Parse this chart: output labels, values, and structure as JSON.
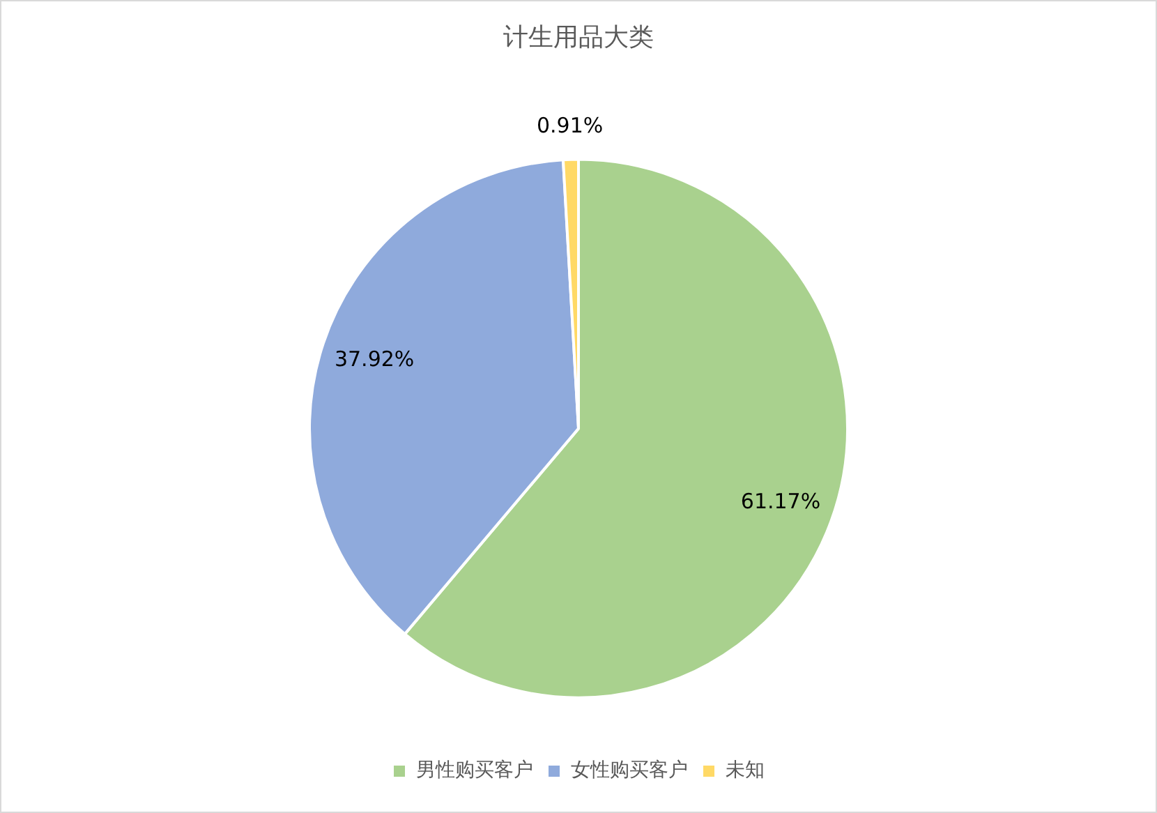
{
  "chart_data": {
    "type": "pie",
    "title": "计生用品大类",
    "categories": [
      "男性购买客户",
      "女性购买客户",
      "未知"
    ],
    "values": [
      61.17,
      37.92,
      0.91
    ],
    "colors": [
      "#a9d18e",
      "#8faadc",
      "#ffd966"
    ],
    "value_labels": [
      "61.17%",
      "37.92%",
      "0.91%"
    ],
    "legend": "bottom"
  }
}
